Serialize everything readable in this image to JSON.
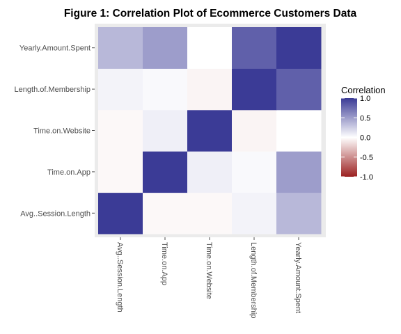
{
  "chart_data": {
    "type": "heatmap",
    "title": "Figure 1: Correlation Plot of Ecommerce Customers Data",
    "xlabel": "",
    "ylabel": "",
    "x_categories": [
      "Avg..Session.Length",
      "Time.on.App",
      "Time.on.Website",
      "Length.of.Membership",
      "Yearly.Amount.Spent"
    ],
    "y_categories": [
      "Avg..Session.Length",
      "Time.on.App",
      "Time.on.Website",
      "Length.of.Membership",
      "Yearly.Amount.Spent"
    ],
    "values": [
      [
        1.0,
        -0.03,
        -0.03,
        0.06,
        0.36
      ],
      [
        -0.03,
        1.0,
        0.08,
        0.03,
        0.5
      ],
      [
        -0.03,
        0.08,
        1.0,
        -0.05,
        0.0
      ],
      [
        0.06,
        0.03,
        -0.05,
        1.0,
        0.81
      ],
      [
        0.36,
        0.5,
        0.0,
        0.81,
        1.0
      ]
    ],
    "legend": {
      "title": "Correlation",
      "ticks": [
        "1.0",
        "0.5",
        "0.0",
        "-0.5",
        "-1.0"
      ],
      "tick_values": [
        1.0,
        0.5,
        0.0,
        -0.5,
        -1.0
      ],
      "range": [
        -1.0,
        1.0
      ],
      "placement": "right"
    },
    "colors": {
      "high": "#3b3b96",
      "mid": "#ffffff",
      "low": "#9b2020",
      "panel": "#ebebeb"
    },
    "grid": true
  }
}
